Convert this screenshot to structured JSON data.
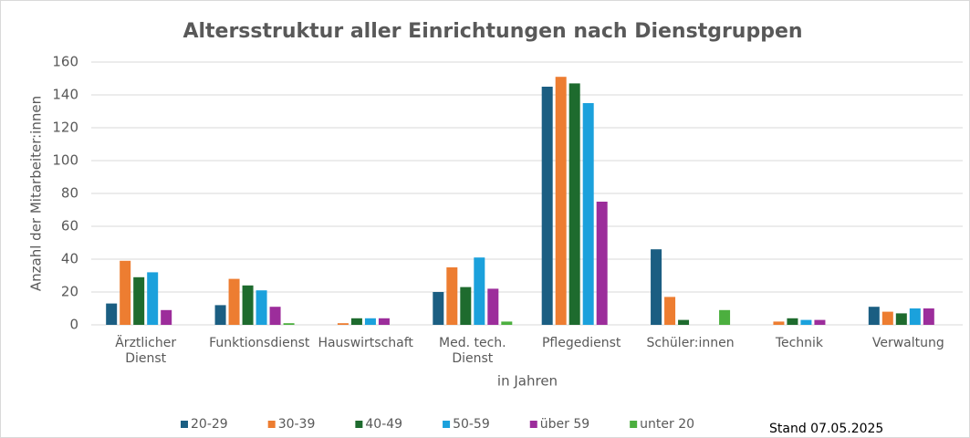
{
  "chart_data": {
    "type": "bar",
    "title": "Altersstruktur aller Einrichtungen nach Dienstgruppen",
    "y_label": "Anzahl der Mitarbeiter:innen",
    "x_label": "in Jahren",
    "note": "Stand 07.05.2025",
    "categories": [
      "Ärztlicher Dienst",
      "Funktionsdienst",
      "Hauswirtschaft",
      "Med. tech. Dienst",
      "Pflegedienst",
      "Schüler:innen",
      "Technik",
      "Verwaltung"
    ],
    "series": [
      {
        "name": "20-29",
        "color": "#1b5e82",
        "values": [
          13,
          12,
          0,
          20,
          145,
          46,
          0,
          11
        ]
      },
      {
        "name": "30-39",
        "color": "#ed7d31",
        "values": [
          39,
          28,
          1,
          35,
          151,
          17,
          2,
          8
        ]
      },
      {
        "name": "40-49",
        "color": "#1e6b2e",
        "values": [
          29,
          24,
          4,
          23,
          147,
          3,
          4,
          7
        ]
      },
      {
        "name": "50-59",
        "color": "#1ba1dc",
        "values": [
          32,
          21,
          4,
          41,
          135,
          0,
          3,
          10
        ]
      },
      {
        "name": "über 59",
        "color": "#9c2d9b",
        "values": [
          9,
          11,
          4,
          22,
          75,
          0,
          3,
          10
        ]
      },
      {
        "name": "unter 20",
        "color": "#4caf3f",
        "values": [
          0,
          1,
          0,
          2,
          0,
          9,
          0,
          0
        ]
      }
    ],
    "ylim": [
      0,
      160
    ],
    "yticks": [
      0,
      20,
      40,
      60,
      80,
      100,
      120,
      140,
      160
    ],
    "grid": true,
    "legend": "bottom"
  }
}
